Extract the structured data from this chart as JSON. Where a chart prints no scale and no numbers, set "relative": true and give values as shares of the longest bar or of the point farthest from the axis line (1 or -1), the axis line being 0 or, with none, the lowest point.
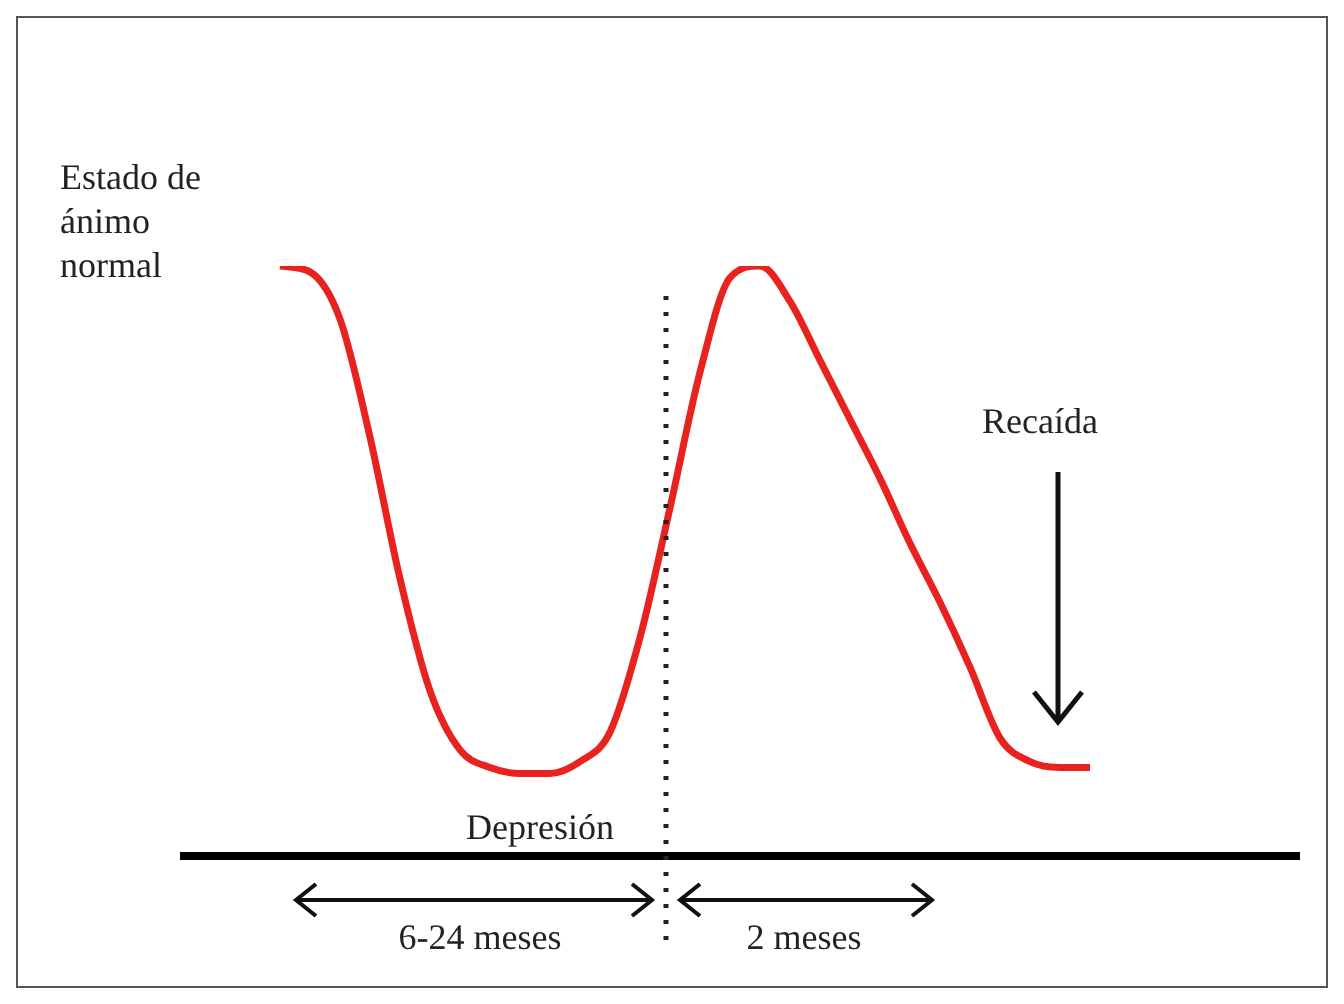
{
  "chart_data": {
    "type": "line",
    "relative": true,
    "color": "#e8231f",
    "marker": "none",
    "line_style": "solid",
    "legend": false,
    "tick_labels": false,
    "categories": [
      null,
      null,
      null,
      null,
      null,
      null,
      null,
      null,
      null,
      null,
      null,
      null,
      null,
      null,
      null,
      null,
      null,
      null,
      null,
      null,
      null,
      null,
      null,
      null,
      null,
      null,
      null,
      null
    ],
    "values": [
      1,
      0.99,
      0.91,
      0.71,
      0.47,
      0.28,
      0.18,
      0.15,
      0.14,
      0.14,
      0.16,
      0.21,
      0.37,
      0.59,
      0.82,
      0.98,
      1,
      0.94,
      0.84,
      0.74,
      0.64,
      0.53,
      0.43,
      0.32,
      0.2,
      0.16,
      0.15,
      0.15
    ],
    "annotations": [
      "Estado de\nánimo\nnormal",
      "Depresión",
      "Recaída",
      "6-24 meses",
      "2 meses"
    ]
  }
}
